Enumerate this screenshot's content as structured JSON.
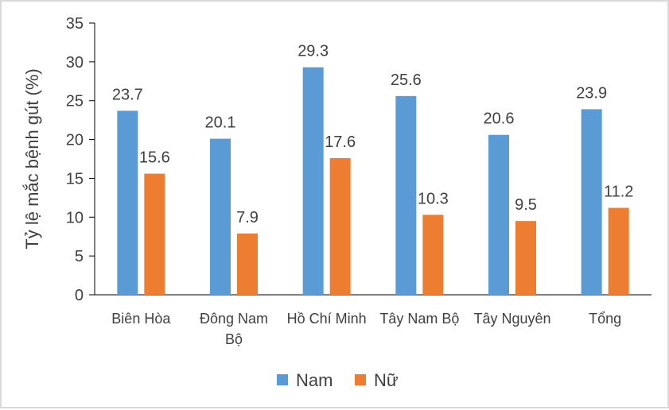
{
  "chart_data": {
    "type": "bar",
    "title": "",
    "xlabel": "",
    "ylabel": "Tỷ lệ mắc bệnh gút (%)",
    "ylim": [
      0,
      35
    ],
    "yticks": [
      0,
      5,
      10,
      15,
      20,
      25,
      30,
      35
    ],
    "grid": false,
    "legend_position": "bottom",
    "categories": [
      [
        "Biên Hòa"
      ],
      [
        "Đông Nam",
        "Bộ"
      ],
      [
        "Hồ Chí Minh"
      ],
      [
        "Tây Nam Bộ"
      ],
      [
        "Tây Nguyên"
      ],
      [
        "Tổng"
      ]
    ],
    "series": [
      {
        "name": "Nam",
        "color": "#5B9BD5",
        "values": [
          23.7,
          20.1,
          29.3,
          25.6,
          20.6,
          23.9
        ]
      },
      {
        "name": "Nữ",
        "color": "#ED7D31",
        "values": [
          15.6,
          7.9,
          17.6,
          10.3,
          9.5,
          11.2
        ]
      }
    ]
  }
}
